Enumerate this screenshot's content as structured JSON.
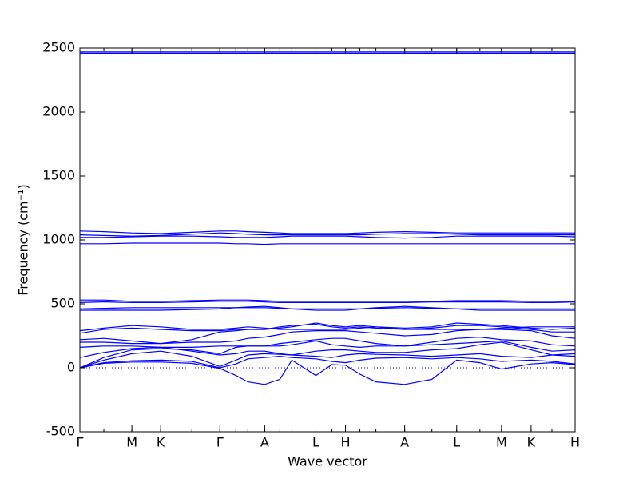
{
  "chart_data": {
    "type": "line",
    "xlabel": "Wave vector",
    "ylabel": "Frequency (cm⁻¹)",
    "color": "#0000ff",
    "hline": 0,
    "xlim": [
      0,
      6.19
    ],
    "ylim": [
      -500,
      2500
    ],
    "yticks": [
      -500,
      0,
      500,
      1000,
      1500,
      2000,
      2500
    ],
    "xticks": [
      {
        "value": 0,
        "label": "Γ"
      },
      {
        "value": 0.65,
        "label": "M"
      },
      {
        "value": 1.01,
        "label": "K"
      },
      {
        "value": 1.75,
        "label": "Γ"
      },
      {
        "value": 2.31,
        "label": "A"
      },
      {
        "value": 2.95,
        "label": "L"
      },
      {
        "value": 3.32,
        "label": "H"
      },
      {
        "value": 4.06,
        "label": "A"
      },
      {
        "value": 4.71,
        "label": "L"
      },
      {
        "value": 5.27,
        "label": "M"
      },
      {
        "value": 5.64,
        "label": "K"
      },
      {
        "value": 6.19,
        "label": "H"
      }
    ],
    "x": [
      0,
      0.3,
      0.65,
      1.01,
      1.4,
      1.75,
      1.95,
      2.1,
      2.31,
      2.5,
      2.65,
      2.95,
      3.15,
      3.32,
      3.5,
      3.7,
      4.06,
      4.4,
      4.71,
      5.0,
      5.27,
      5.64,
      5.9,
      6.19
    ],
    "series": [
      {
        "values": [
          0,
          35,
          45,
          45,
          35,
          -5,
          -60,
          -110,
          -130,
          -90,
          60,
          -60,
          25,
          20,
          -50,
          -110,
          -130,
          -90,
          60,
          40,
          -10,
          30,
          40,
          25
        ]
      },
      {
        "values": [
          0,
          40,
          55,
          60,
          50,
          0,
          30,
          70,
          80,
          90,
          80,
          70,
          50,
          40,
          60,
          75,
          80,
          70,
          80,
          70,
          50,
          60,
          50,
          30
        ]
      },
      {
        "values": [
          0,
          60,
          110,
          130,
          90,
          10,
          60,
          100,
          110,
          105,
          100,
          90,
          80,
          100,
          110,
          105,
          100,
          90,
          100,
          110,
          90,
          80,
          100,
          110
        ]
      },
      {
        "values": [
          80,
          120,
          150,
          160,
          130,
          100,
          110,
          130,
          130,
          110,
          100,
          130,
          140,
          140,
          130,
          120,
          120,
          140,
          150,
          180,
          200,
          140,
          100,
          90
        ]
      },
      {
        "values": [
          0,
          80,
          140,
          150,
          140,
          110,
          160,
          170,
          170,
          170,
          180,
          210,
          180,
          170,
          160,
          170,
          170,
          180,
          190,
          200,
          210,
          160,
          130,
          140
        ]
      },
      {
        "values": [
          160,
          170,
          170,
          160,
          160,
          170,
          170,
          170,
          170,
          190,
          200,
          220,
          230,
          230,
          210,
          190,
          170,
          200,
          230,
          240,
          220,
          210,
          180,
          170
        ]
      },
      {
        "values": [
          200,
          200,
          190,
          190,
          200,
          200,
          210,
          230,
          240,
          260,
          280,
          290,
          290,
          290,
          280,
          270,
          250,
          260,
          290,
          300,
          300,
          290,
          250,
          230
        ]
      },
      {
        "values": [
          220,
          230,
          210,
          190,
          220,
          280,
          290,
          300,
          300,
          320,
          330,
          340,
          320,
          310,
          320,
          310,
          300,
          310,
          330,
          330,
          320,
          300,
          280,
          280
        ]
      },
      {
        "values": [
          270,
          300,
          310,
          300,
          290,
          290,
          300,
          300,
          300,
          310,
          320,
          350,
          330,
          320,
          330,
          320,
          310,
          320,
          350,
          340,
          330,
          310,
          300,
          310
        ]
      },
      {
        "values": [
          290,
          310,
          330,
          320,
          300,
          300,
          310,
          320,
          310,
          300,
          300,
          300,
          300,
          300,
          310,
          320,
          300,
          300,
          300,
          300,
          310,
          320,
          320,
          320
        ]
      },
      {
        "values": [
          450,
          450,
          450,
          450,
          455,
          460,
          470,
          475,
          480,
          470,
          460,
          450,
          450,
          450,
          460,
          470,
          480,
          470,
          460,
          450,
          450,
          450,
          450,
          450
        ]
      },
      {
        "values": [
          460,
          465,
          470,
          470,
          470,
          470,
          470,
          470,
          470,
          465,
          460,
          460,
          460,
          460,
          460,
          465,
          470,
          465,
          460,
          460,
          460,
          460,
          460,
          460
        ]
      },
      {
        "values": [
          510,
          515,
          510,
          510,
          515,
          520,
          520,
          520,
          515,
          510,
          510,
          510,
          510,
          510,
          510,
          510,
          510,
          515,
          515,
          515,
          515,
          510,
          510,
          515
        ]
      },
      {
        "values": [
          530,
          530,
          520,
          520,
          525,
          530,
          530,
          530,
          525,
          520,
          520,
          520,
          520,
          520,
          520,
          520,
          520,
          520,
          525,
          525,
          525,
          520,
          520,
          520
        ]
      },
      {
        "values": [
          970,
          970,
          975,
          975,
          975,
          975,
          970,
          970,
          965,
          970,
          970,
          970,
          970,
          970,
          970,
          970,
          970,
          970,
          970,
          970,
          970,
          970,
          970,
          970
        ]
      },
      {
        "values": [
          1020,
          1020,
          1025,
          1030,
          1030,
          1025,
          1020,
          1020,
          1020,
          1025,
          1030,
          1030,
          1030,
          1030,
          1025,
          1020,
          1015,
          1020,
          1030,
          1030,
          1030,
          1030,
          1030,
          1025
        ]
      },
      {
        "values": [
          1040,
          1035,
          1030,
          1035,
          1045,
          1055,
          1050,
          1045,
          1040,
          1040,
          1040,
          1040,
          1040,
          1040,
          1040,
          1045,
          1050,
          1050,
          1045,
          1040,
          1040,
          1040,
          1040,
          1040
        ]
      },
      {
        "values": [
          1070,
          1065,
          1055,
          1050,
          1060,
          1070,
          1070,
          1065,
          1060,
          1055,
          1050,
          1050,
          1050,
          1050,
          1055,
          1060,
          1065,
          1060,
          1055,
          1055,
          1055,
          1055,
          1055,
          1055
        ]
      },
      {
        "values": [
          2460,
          2460,
          2460,
          2460,
          2460,
          2460,
          2460,
          2460,
          2460,
          2460,
          2460,
          2460,
          2460,
          2460,
          2460,
          2460,
          2460,
          2460,
          2460,
          2460,
          2460,
          2460,
          2460,
          2460
        ]
      },
      {
        "values": [
          2470,
          2470,
          2470,
          2470,
          2470,
          2470,
          2470,
          2470,
          2470,
          2470,
          2470,
          2470,
          2470,
          2470,
          2470,
          2470,
          2470,
          2470,
          2470,
          2470,
          2470,
          2470,
          2470,
          2470
        ]
      }
    ]
  }
}
